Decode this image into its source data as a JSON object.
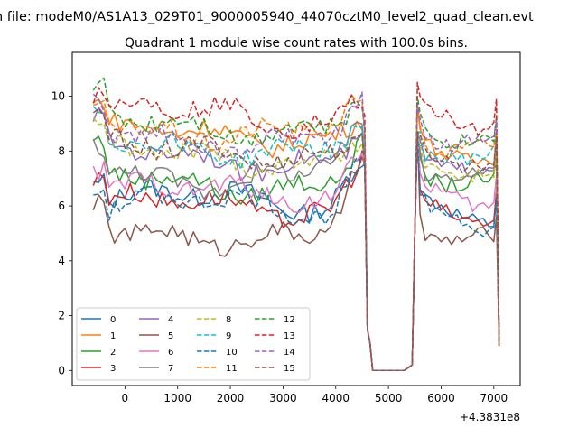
{
  "figure": {
    "suptitle": "n file: modeM0/AS1A13_029T01_9000005940_44070cztM0_level2_quad_clean.evt"
  },
  "chart_data": {
    "type": "line",
    "title": "Quadrant 1 module wise count rates with 100.0s bins.",
    "xlabel": "",
    "ylabel": "",
    "x_offset_label": "+4.3831e8",
    "xlim": [
      -1000,
      7500
    ],
    "ylim": [
      -0.55,
      11.6
    ],
    "xticks": [
      0,
      1000,
      2000,
      3000,
      4000,
      5000,
      6000,
      7000
    ],
    "xtick_labels": [
      "0",
      "1000",
      "2000",
      "3000",
      "4000",
      "5000",
      "6000",
      "7000"
    ],
    "yticks": [
      0,
      2,
      4,
      6,
      8,
      10
    ],
    "ytick_labels": [
      "0",
      "2",
      "4",
      "6",
      "8",
      "10"
    ],
    "grid": false,
    "legend": {
      "position": "lower-left",
      "columns": 4
    },
    "gap_x": [
      4700,
      5350
    ],
    "series": [
      {
        "name": "0",
        "color": "#1f77b4",
        "dash": "solid",
        "level": 6.2,
        "amp": 0.35,
        "phase": 0.3,
        "recover": 6.0,
        "peak": 9.0
      },
      {
        "name": "1",
        "color": "#ff7f0e",
        "dash": "solid",
        "level": 8.6,
        "amp": 0.3,
        "phase": 1.1,
        "recover": 8.2,
        "peak": 9.9
      },
      {
        "name": "2",
        "color": "#2ca02c",
        "dash": "solid",
        "level": 6.9,
        "amp": 0.4,
        "phase": 2.0,
        "recover": 7.2,
        "peak": 9.0
      },
      {
        "name": "3",
        "color": "#d62728",
        "dash": "solid",
        "level": 6.0,
        "amp": 0.35,
        "phase": 0.8,
        "recover": 6.0,
        "peak": 9.0
      },
      {
        "name": "4",
        "color": "#9467bd",
        "dash": "solid",
        "level": 7.8,
        "amp": 0.4,
        "phase": 1.7,
        "recover": 7.8,
        "peak": 9.0
      },
      {
        "name": "5",
        "color": "#8c564b",
        "dash": "solid",
        "level": 5.0,
        "amp": 0.3,
        "phase": 2.6,
        "recover": 5.1,
        "peak": 9.0
      },
      {
        "name": "6",
        "color": "#e377c2",
        "dash": "solid",
        "level": 6.5,
        "amp": 0.3,
        "phase": 0.5,
        "recover": 6.6,
        "peak": 9.0
      },
      {
        "name": "7",
        "color": "#7f7f7f",
        "dash": "solid",
        "level": 7.2,
        "amp": 0.45,
        "phase": 3.0,
        "recover": 7.4,
        "peak": 9.0
      },
      {
        "name": "8",
        "color": "#bcbd22",
        "dash": "dashed",
        "level": 7.8,
        "amp": 0.3,
        "phase": 1.4,
        "recover": 7.6,
        "peak": 9.0
      },
      {
        "name": "9",
        "color": "#17becf",
        "dash": "dashed",
        "level": 8.2,
        "amp": 0.35,
        "phase": 2.2,
        "recover": 8.1,
        "peak": 9.0
      },
      {
        "name": "10",
        "color": "#1f77b4",
        "dash": "dashed",
        "level": 6.0,
        "amp": 0.35,
        "phase": 0.1,
        "recover": 5.8,
        "peak": 9.0
      },
      {
        "name": "11",
        "color": "#ff7f0e",
        "dash": "dashed",
        "level": 8.8,
        "amp": 0.3,
        "phase": 2.8,
        "recover": 8.3,
        "peak": 10.0
      },
      {
        "name": "12",
        "color": "#2ca02c",
        "dash": "dashed",
        "level": 9.0,
        "amp": 0.35,
        "phase": 1.9,
        "recover": 8.8,
        "peak": 10.3
      },
      {
        "name": "13",
        "color": "#d62728",
        "dash": "dashed",
        "level": 9.3,
        "amp": 0.4,
        "phase": 0.7,
        "recover": 9.4,
        "peak": 10.8
      },
      {
        "name": "14",
        "color": "#9467bd",
        "dash": "dashed",
        "level": 8.5,
        "amp": 0.35,
        "phase": 2.4,
        "recover": 8.6,
        "peak": 10.0
      },
      {
        "name": "15",
        "color": "#8c564b",
        "dash": "dashed",
        "level": 8.0,
        "amp": 0.3,
        "phase": 1.3,
        "recover": 8.0,
        "peak": 9.0
      }
    ]
  }
}
